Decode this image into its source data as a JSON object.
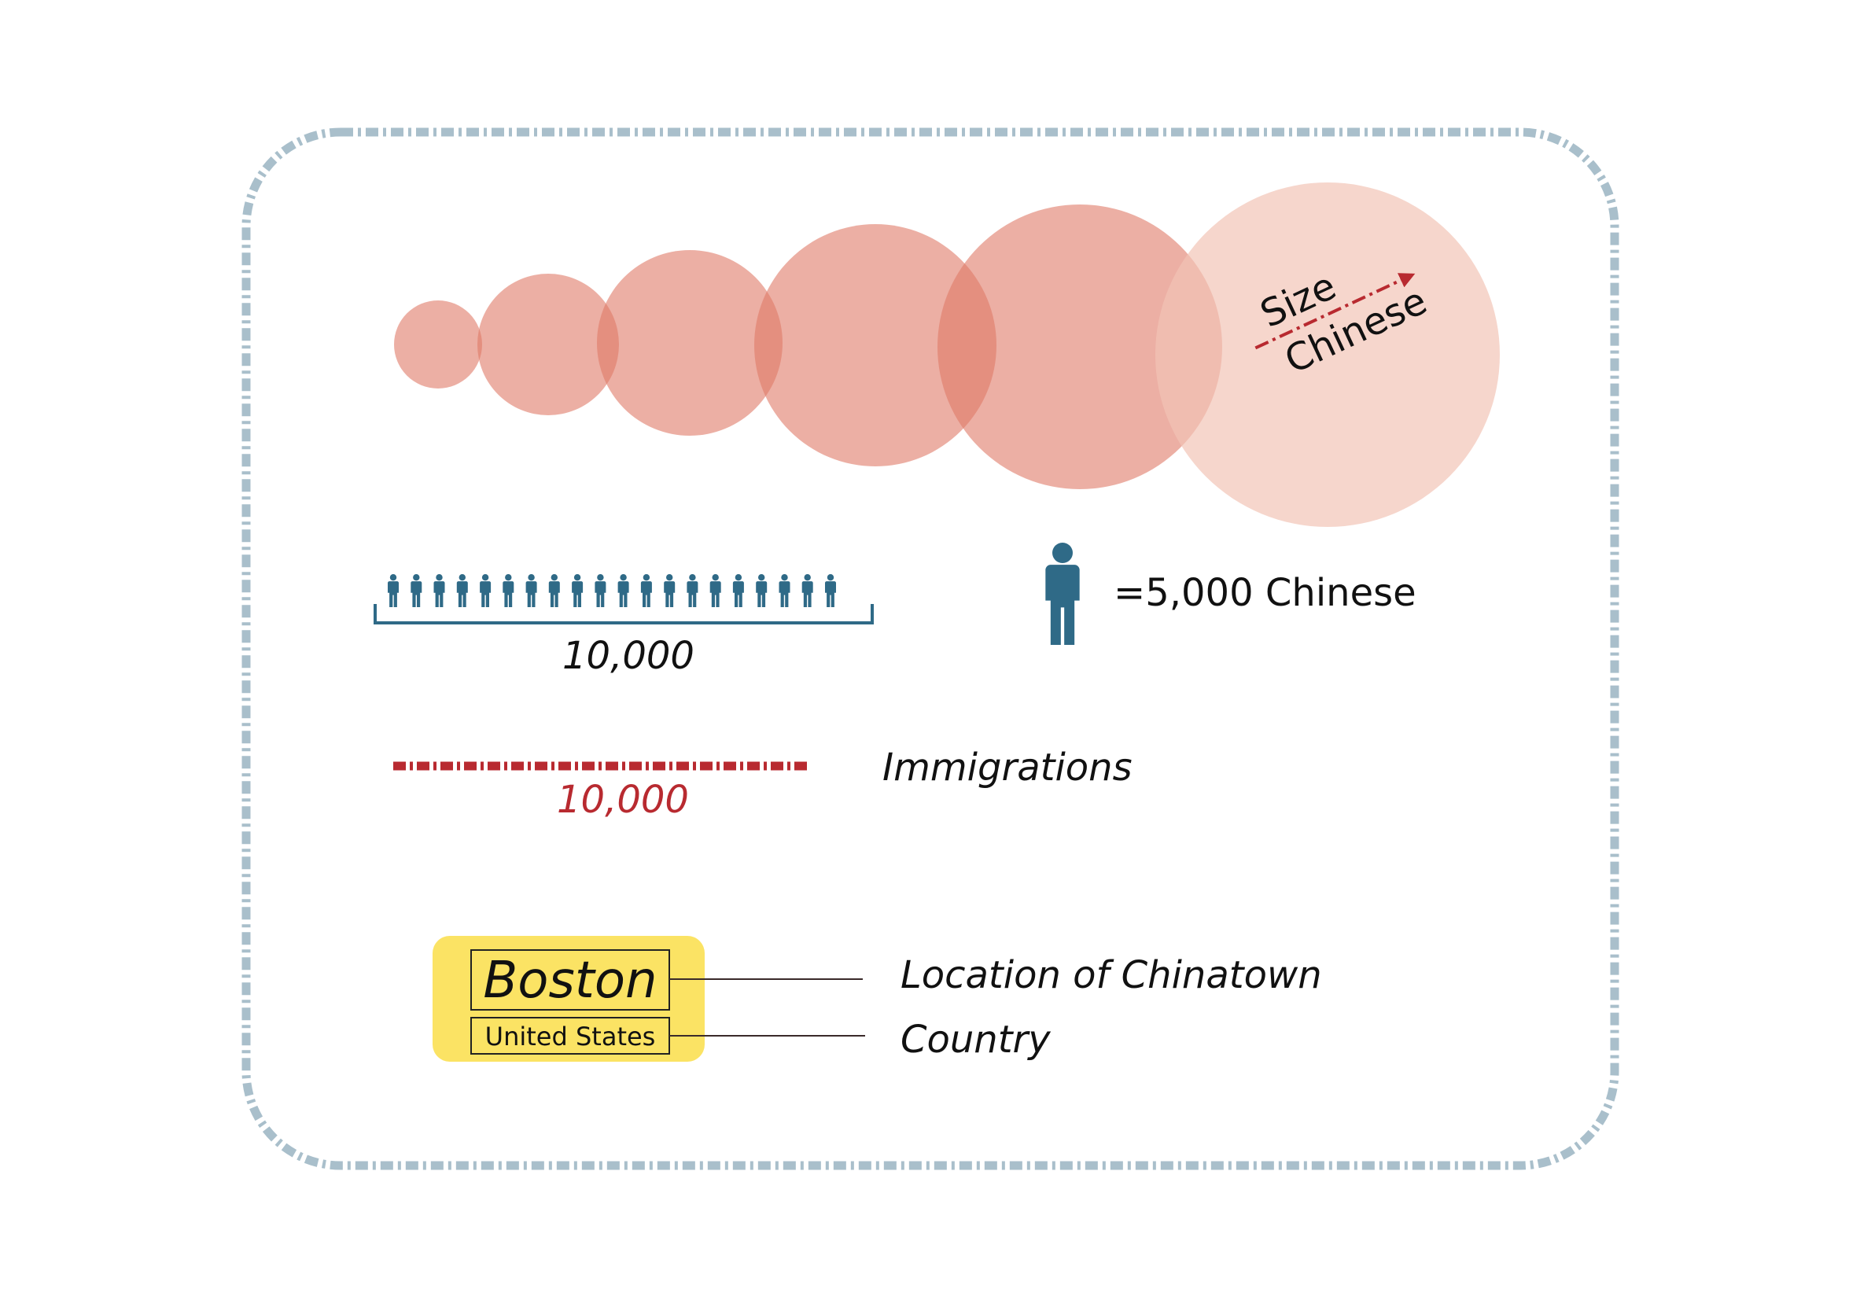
{
  "colors": {
    "frame": "#a9bfcb",
    "bubble": "#e07a68",
    "bubble_last": "#f2c4b7",
    "person": "#2f6a87",
    "immigration": "#b82a30",
    "arrow": "#b82a30",
    "badge": "#fbe364",
    "text": "#111111"
  },
  "size_legend": {
    "top_word": "Size",
    "bottom_word": "Chinese",
    "bubble_count": 6
  },
  "population_scale": {
    "icon": "person-icon",
    "icon_count": 20,
    "label": "10,000"
  },
  "person_legend": {
    "icon": "person-icon",
    "label": "=5,000 Chinese"
  },
  "immigration_scale": {
    "label": "10,000",
    "caption": "Immigrations"
  },
  "location_badge": {
    "city": "Boston",
    "country": "United States",
    "city_caption": "Location of Chinatown",
    "country_caption": "Country"
  }
}
